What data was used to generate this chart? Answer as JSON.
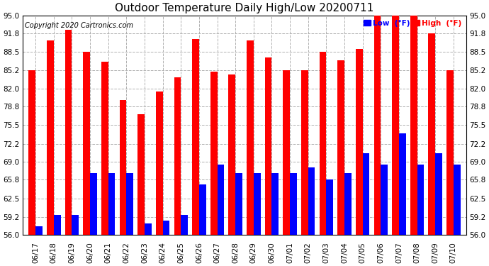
{
  "title": "Outdoor Temperature Daily High/Low 20200711",
  "copyright": "Copyright 2020 Cartronics.com",
  "legend_low": "Low  (°F)",
  "legend_high": "High  (°F)",
  "dates": [
    "06/17",
    "06/18",
    "06/19",
    "06/20",
    "06/21",
    "06/22",
    "06/23",
    "06/24",
    "06/25",
    "06/26",
    "06/27",
    "06/28",
    "06/29",
    "06/30",
    "07/01",
    "07/02",
    "07/03",
    "07/04",
    "07/05",
    "07/06",
    "07/07",
    "07/08",
    "07/09",
    "07/10"
  ],
  "highs": [
    85.2,
    90.5,
    92.5,
    88.5,
    86.8,
    80.0,
    77.5,
    81.5,
    84.0,
    90.8,
    85.0,
    84.5,
    90.5,
    87.5,
    85.2,
    85.2,
    88.5,
    87.0,
    89.0,
    95.0,
    95.0,
    95.0,
    91.8,
    85.2
  ],
  "lows": [
    57.5,
    59.5,
    59.5,
    67.0,
    67.0,
    67.0,
    58.0,
    58.5,
    59.5,
    65.0,
    68.5,
    67.0,
    67.0,
    67.0,
    67.0,
    68.0,
    65.8,
    67.0,
    70.5,
    68.5,
    74.0,
    68.5,
    70.5,
    68.5
  ],
  "ybase": 56.0,
  "ylim": [
    56.0,
    95.0
  ],
  "yticks": [
    56.0,
    59.2,
    62.5,
    65.8,
    69.0,
    72.2,
    75.5,
    78.8,
    82.0,
    85.2,
    88.5,
    91.8,
    95.0
  ],
  "bar_width": 0.38,
  "high_color": "#ff0000",
  "low_color": "#0000ff",
  "bg_color": "#ffffff",
  "grid_color": "#b0b0b0",
  "title_fontsize": 11,
  "tick_fontsize": 7.5,
  "copyright_fontsize": 7
}
